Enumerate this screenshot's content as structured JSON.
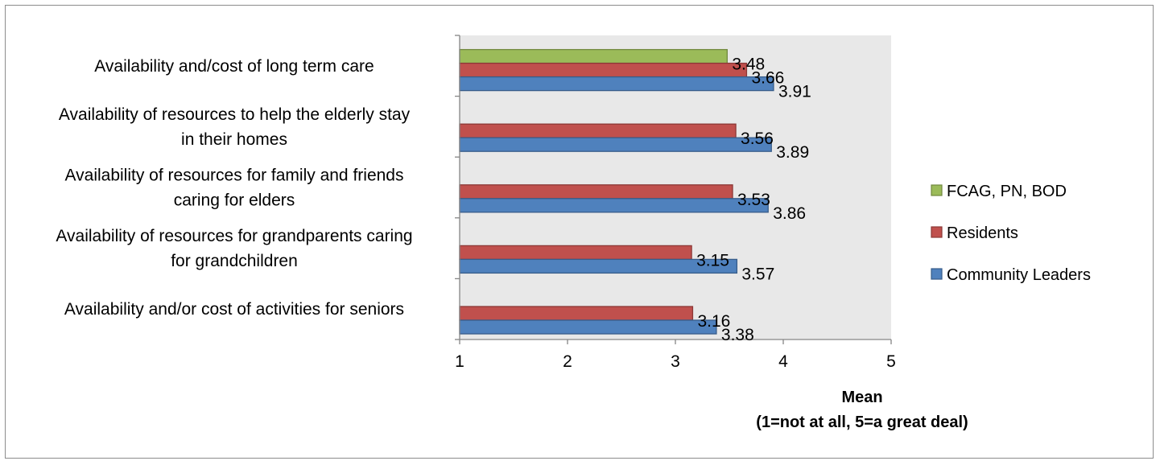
{
  "chart_data": {
    "type": "bar",
    "orientation": "horizontal",
    "categories": [
      [
        "Availability and/cost of long term care "
      ],
      [
        "Availability of resources to help the elderly stay",
        "in their homes"
      ],
      [
        "Availability of resources for family and friends",
        "caring for elders"
      ],
      [
        "Availability of resources for grandparents caring",
        "for grandchildren"
      ],
      [
        "Availability and/or cost of activities for seniors "
      ]
    ],
    "series": [
      {
        "name": "FCAG, PN, BOD",
        "color": "#9bbb59",
        "stroke": "#71893f",
        "values": [
          3.48,
          null,
          null,
          null,
          null
        ],
        "labels": [
          "3.48",
          null,
          null,
          null,
          null
        ]
      },
      {
        "name": "Residents",
        "color": "#c0504d",
        "stroke": "#8c3836",
        "values": [
          3.66,
          3.56,
          3.53,
          3.15,
          3.16
        ],
        "labels": [
          "3.66",
          "3.56",
          "3.53",
          "3.15",
          "3.16"
        ]
      },
      {
        "name": "Community Leaders",
        "color": "#4f81bd",
        "stroke": "#385d8a",
        "values": [
          3.91,
          3.89,
          3.86,
          3.57,
          3.38
        ],
        "labels": [
          "3.91",
          "3.89",
          "3.86",
          "3.57",
          "3.38"
        ]
      }
    ],
    "xlim": [
      1,
      5
    ],
    "xticks": [
      "1",
      "2",
      "3",
      "4",
      "5"
    ],
    "xlabel": [
      "Mean",
      "(1=not at all, 5=a great deal)"
    ],
    "ylabel": "",
    "title": "",
    "legend_position": "right",
    "plot_background": "#e8e8e8",
    "grid": false
  }
}
